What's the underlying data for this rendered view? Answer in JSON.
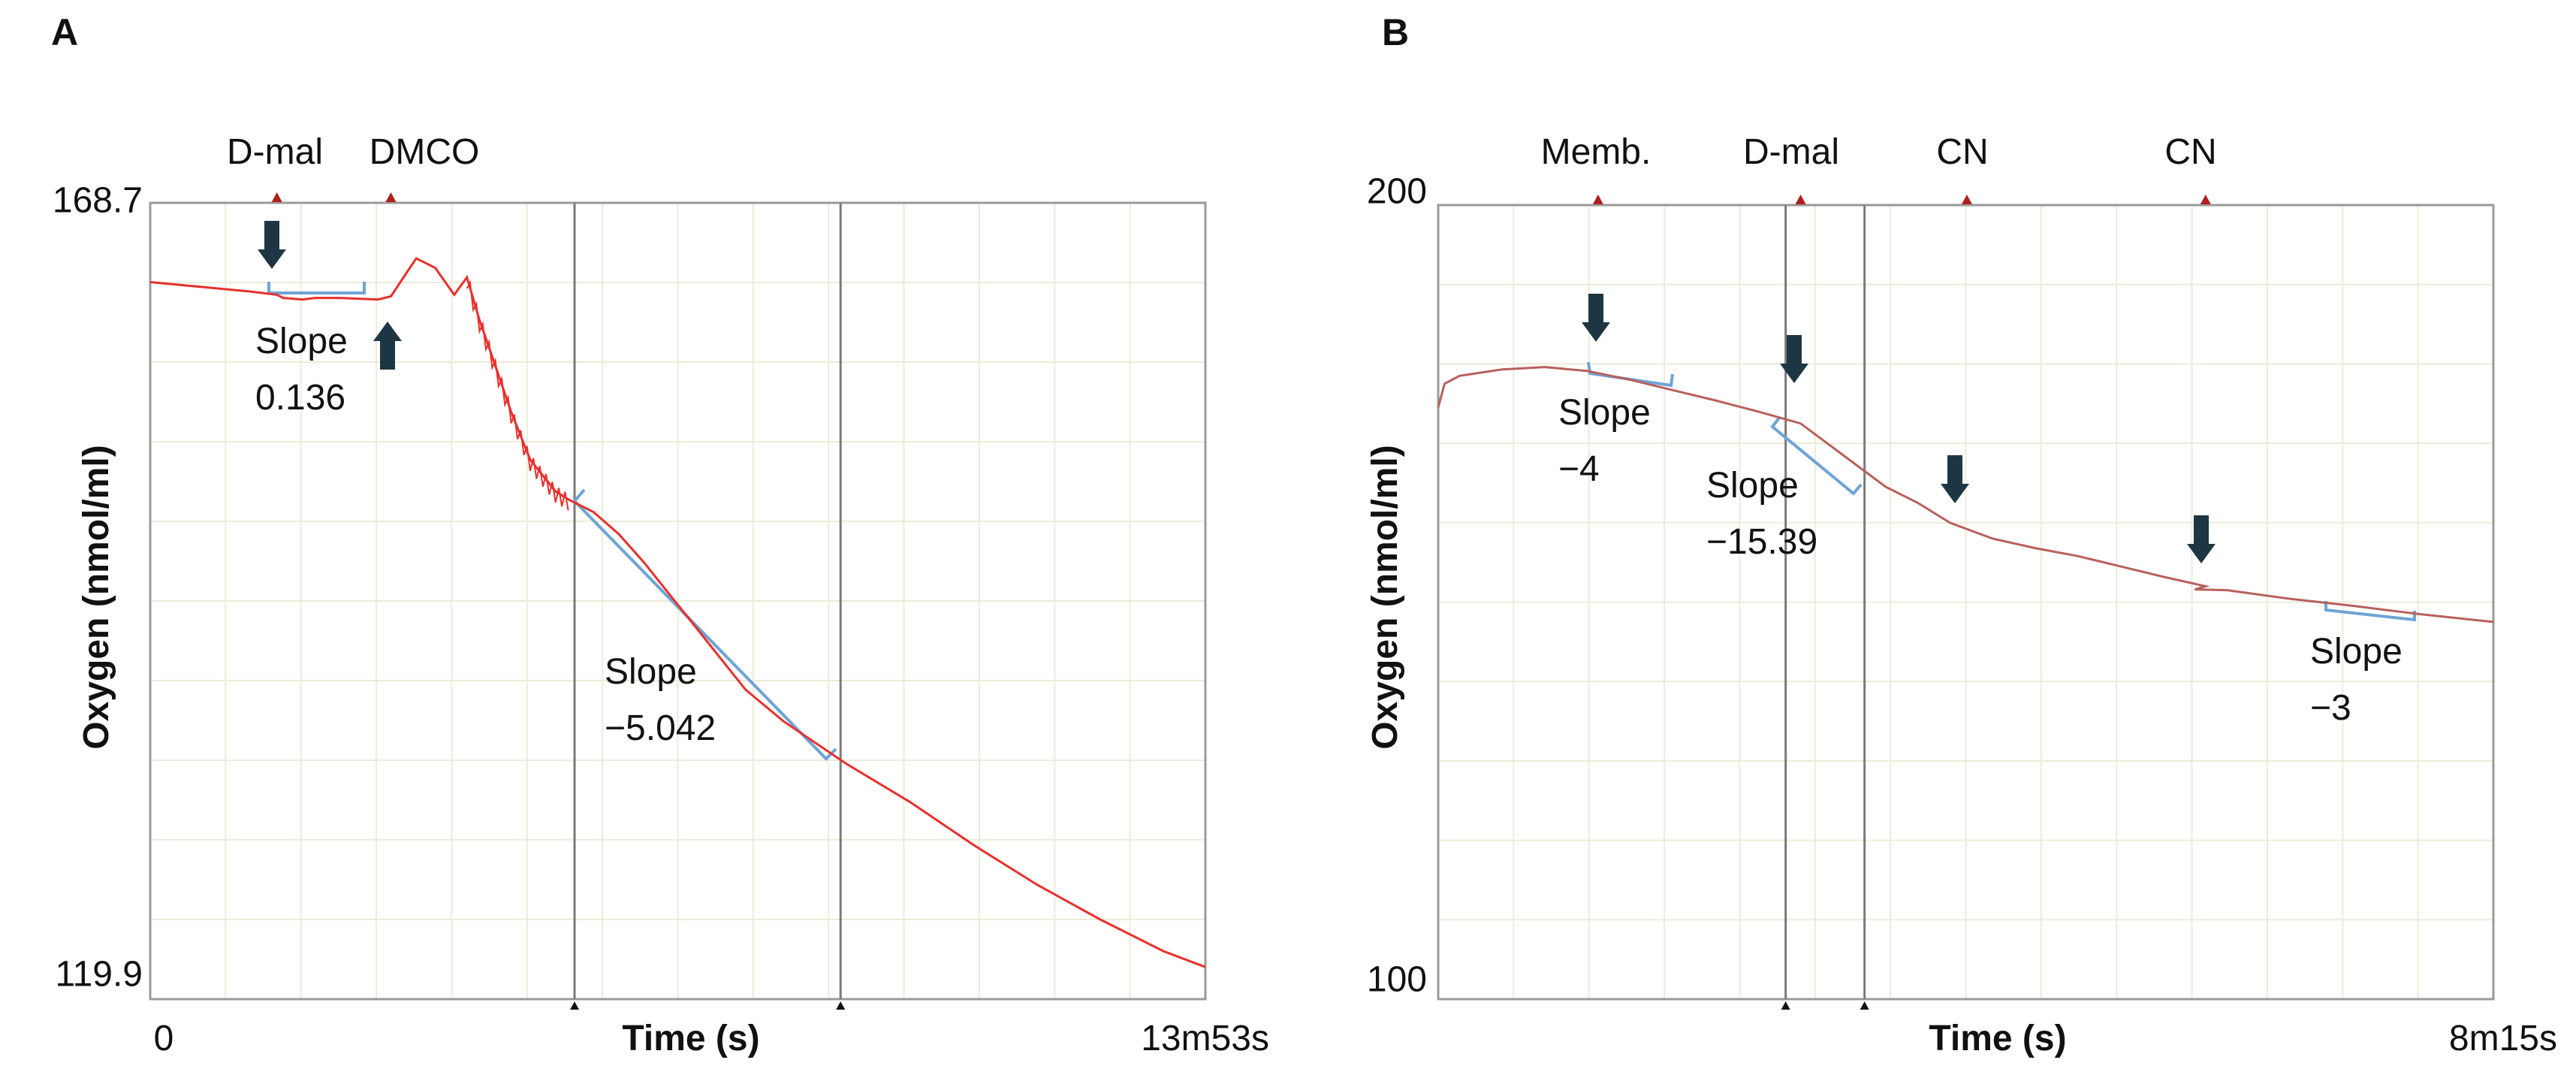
{
  "colors": {
    "trace_a": "#e8302c",
    "trace_b": "#b9605c",
    "bracket": "#6ea4d6",
    "arrow": "#1d3644",
    "marker": "#b01e1e",
    "grid": "#ececd8",
    "frame": "#9a9a9a",
    "cursor": "#7a7a7a"
  },
  "chart_data": [
    {
      "panel": "A",
      "type": "line",
      "title": "",
      "xlabel": "Time (s)",
      "ylabel": "Oxygen (nmol/ml)",
      "x_start_label": "0",
      "x_end_label": "13m53s",
      "x_total_s": 833,
      "ylim": [
        119.9,
        168.7
      ],
      "y_max_label": "168.7",
      "y_min_label": "119.9",
      "series": [
        {
          "name": "Oxygen",
          "x": [
            0,
            40,
            80,
            100,
            105,
            120,
            130,
            150,
            180,
            190,
            200,
            210,
            225,
            240,
            250,
            260,
            270,
            285,
            300,
            320,
            330,
            350,
            370,
            390,
            410,
            430,
            450,
            470,
            500,
            550,
            600,
            650,
            700,
            750,
            800,
            833
          ],
          "y": [
            163.7,
            163.4,
            163.1,
            162.9,
            162.7,
            162.6,
            162.7,
            162.7,
            162.6,
            162.8,
            164.0,
            165.2,
            164.6,
            162.9,
            164.0,
            161.3,
            159.0,
            155.5,
            152.5,
            150.5,
            150.0,
            149.2,
            147.8,
            146.0,
            144.0,
            142.0,
            140.0,
            138.0,
            136.0,
            133.3,
            130.9,
            128.2,
            125.7,
            123.5,
            121.5,
            120.5
          ]
        }
      ],
      "events": [
        {
          "label": "D-mal",
          "time_s": 100
        },
        {
          "label": "DMCO",
          "time_s": 190
        }
      ],
      "cursors_s": [
        335,
        545
      ],
      "annotations": [
        {
          "line1": "Slope",
          "line2": "0.136"
        },
        {
          "line1": "Slope",
          "line2": "−5.042"
        }
      ]
    },
    {
      "panel": "B",
      "type": "line",
      "title": "",
      "xlabel": "Time (s)",
      "ylabel": "Oxygen (nmol/ml)",
      "x_start_label": "",
      "x_end_label": "8m15s",
      "x_total_s": 495,
      "ylim": [
        100,
        200
      ],
      "y_max_label": "200",
      "y_min_label": "100",
      "series": [
        {
          "name": "Oxygen",
          "x": [
            0,
            3,
            10,
            30,
            50,
            70,
            90,
            110,
            130,
            150,
            170,
            180,
            190,
            200,
            210,
            225,
            240,
            250,
            260,
            280,
            300,
            320,
            340,
            360,
            355,
            370,
            400,
            430,
            460,
            495
          ],
          "y": [
            174.5,
            177.5,
            178.5,
            179.3,
            179.6,
            179.1,
            178.0,
            176.7,
            175.4,
            174.0,
            172.5,
            170.5,
            168.5,
            166.5,
            164.5,
            162.5,
            160.0,
            159.0,
            158.0,
            156.8,
            155.8,
            154.5,
            153.2,
            152.0,
            151.6,
            151.5,
            150.4,
            149.5,
            148.5,
            147.5
          ]
        }
      ],
      "events": [
        {
          "label": "Memb.",
          "time_s": 75
        },
        {
          "label": "D-mal",
          "time_s": 170
        },
        {
          "label": "CN",
          "time_s": 248
        },
        {
          "label": "CN",
          "time_s": 360
        }
      ],
      "cursors_s": [
        163,
        200
      ],
      "annotations": [
        {
          "line1": "Slope",
          "line2": "−4"
        },
        {
          "line1": "Slope",
          "line2": "−15.39"
        },
        {
          "line1": "Slope",
          "line2": "−3"
        }
      ]
    }
  ]
}
